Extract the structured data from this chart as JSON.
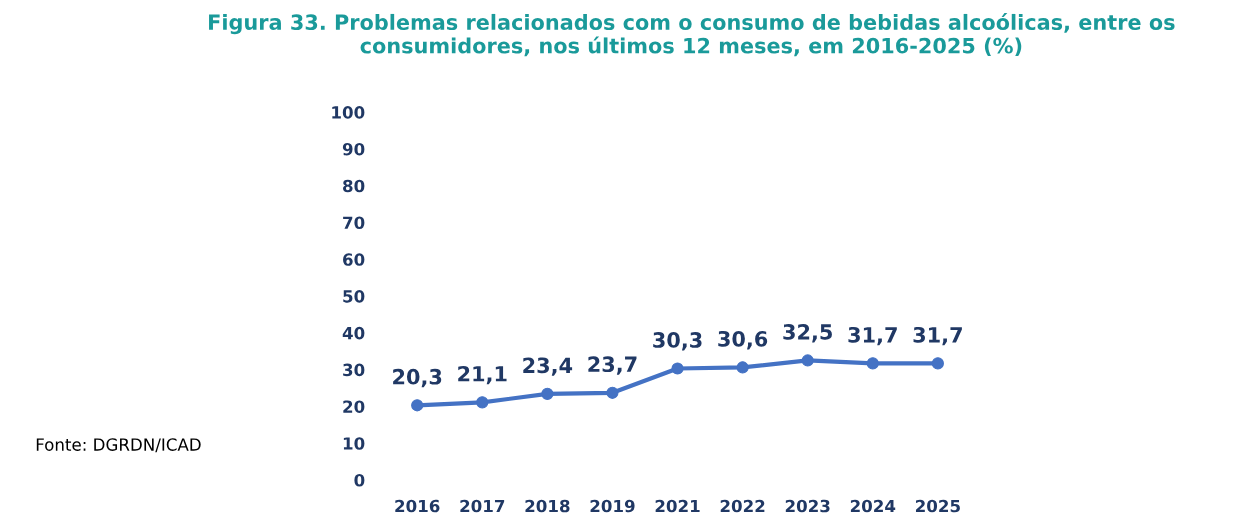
{
  "chart_data": {
    "type": "line",
    "title": "Figura 33. Problemas relacionados com o consumo de bebidas alcoólicas, entre os consumidores, nos últimos 12 meses, em 2016-2025 (%)",
    "categories": [
      "2016",
      "2017",
      "2018",
      "2019",
      "2021",
      "2022",
      "2023",
      "2024",
      "2025"
    ],
    "series": [
      {
        "color": "#4472c4",
        "values": [
          20.3,
          21.1,
          23.4,
          23.7,
          30.3,
          30.6,
          32.5,
          31.7,
          31.7
        ],
        "value_labels": [
          "20,3",
          "21,1",
          "23,4",
          "23,7",
          "30,3",
          "30,6",
          "32,5",
          "31,7",
          "31,7"
        ]
      }
    ],
    "ylim": [
      0,
      100
    ],
    "yticks": [
      0,
      10,
      20,
      30,
      40,
      50,
      60,
      70,
      80,
      90,
      100
    ],
    "marker": "circle",
    "line_style": "solid",
    "grid": false,
    "annotations": [
      "Fonte: DGRDN/ICAD"
    ]
  }
}
